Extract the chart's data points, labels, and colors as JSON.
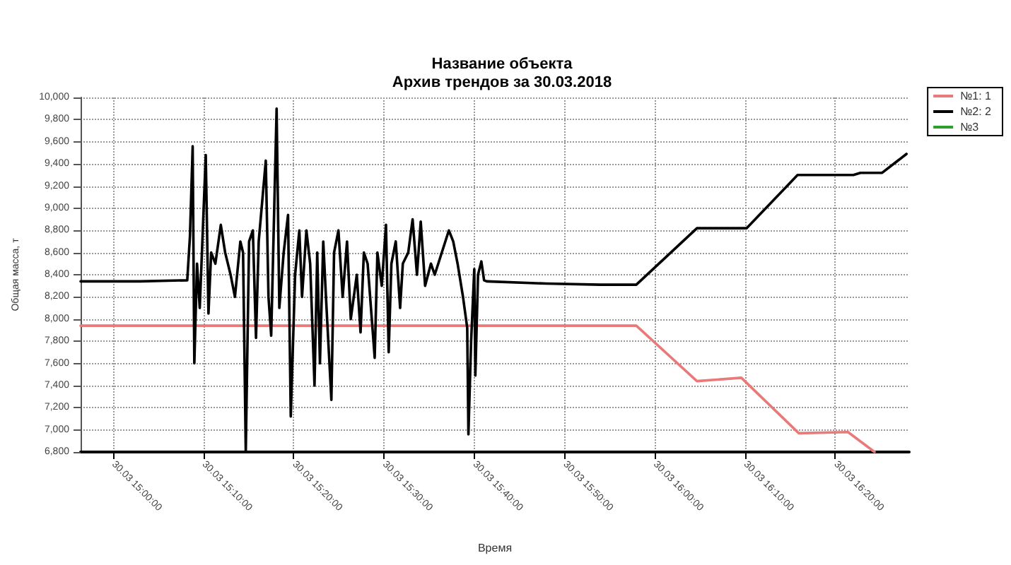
{
  "chart_data": {
    "type": "line",
    "title": "Название объекта\nАрхив трендов за 30.03.2018",
    "xlabel": "Время",
    "ylabel": "Общая масса, т",
    "xlim": [
      "2018-03-30T14:56:24",
      "2018-03-30T16:28:12"
    ],
    "ylim": [
      6800,
      10000
    ],
    "xticks": [
      {
        "value": "2018-03-30T15:00",
        "label": "30.03 15:00:00"
      },
      {
        "value": "2018-03-30T15:10",
        "label": "30.03 15:10:00"
      },
      {
        "value": "2018-03-30T15:20",
        "label": "30.03 15:20:00"
      },
      {
        "value": "2018-03-30T15:30",
        "label": "30.03 15:30:00"
      },
      {
        "value": "2018-03-30T15:40",
        "label": "30.03 15:40:00"
      },
      {
        "value": "2018-03-30T15:50",
        "label": "30.03 15:50:00"
      },
      {
        "value": "2018-03-30T16:00",
        "label": "30.03 16:00:00"
      },
      {
        "value": "2018-03-30T16:10",
        "label": "30.03 16:10:00"
      },
      {
        "value": "2018-03-30T16:20",
        "label": "30.03 16:20:00"
      }
    ],
    "yticks": [
      {
        "value": 6800,
        "label": "6,800"
      },
      {
        "value": 7000,
        "label": "7,000"
      },
      {
        "value": 7200,
        "label": "7,200"
      },
      {
        "value": 7400,
        "label": "7,400"
      },
      {
        "value": 7600,
        "label": "7,600"
      },
      {
        "value": 7800,
        "label": "7,800"
      },
      {
        "value": 8000,
        "label": "8,000"
      },
      {
        "value": 8200,
        "label": "8,200"
      },
      {
        "value": 8400,
        "label": "8,400"
      },
      {
        "value": 8600,
        "label": "8,600"
      },
      {
        "value": 8800,
        "label": "8,800"
      },
      {
        "value": 9000,
        "label": "9,000"
      },
      {
        "value": 9200,
        "label": "9,200"
      },
      {
        "value": 9400,
        "label": "9,400"
      },
      {
        "value": 9600,
        "label": "9,600"
      },
      {
        "value": 9800,
        "label": "9,800"
      },
      {
        "value": 10000,
        "label": "10,000"
      }
    ],
    "grid": true,
    "legend": "top right",
    "marker": "none",
    "line_style": "solid",
    "series": [
      {
        "name": "№1: 1",
        "color": "#e87a7a",
        "x": [
          "2018-03-30T14:56:24",
          "2018-03-30T15:30:00",
          "2018-03-30T15:57:58",
          "2018-03-30T16:04:41",
          "2018-03-30T16:09:36",
          "2018-03-30T16:15:58",
          "2018-03-30T16:21:25",
          "2018-03-30T16:24:22"
        ],
        "values": [
          7940,
          7940,
          7940,
          7440,
          7470,
          6970,
          6980,
          6800
        ]
      },
      {
        "name": "№2: 2",
        "color": "#000000",
        "x": [
          "2018-03-30T14:56:24",
          "2018-03-30T15:03:00",
          "2018-03-30T15:08:13",
          "2018-03-30T15:08:31",
          "2018-03-30T15:08:49",
          "2018-03-30T15:09:00",
          "2018-03-30T15:09:18",
          "2018-03-30T15:09:36",
          "2018-03-30T15:10:16",
          "2018-03-30T15:10:34",
          "2018-03-30T15:10:52",
          "2018-03-30T15:11:20",
          "2018-03-30T15:11:56",
          "2018-03-30T15:12:25",
          "2018-03-30T15:13:01",
          "2018-03-30T15:13:30",
          "2018-03-30T15:14:06",
          "2018-03-30T15:14:24",
          "2018-03-30T15:14:42",
          "2018-03-30T15:15:04",
          "2018-03-30T15:15:29",
          "2018-03-30T15:15:50",
          "2018-03-30T15:16:08",
          "2018-03-30T15:16:26",
          "2018-03-30T15:16:55",
          "2018-03-30T15:17:13",
          "2018-03-30T15:17:31",
          "2018-03-30T15:18:07",
          "2018-03-30T15:18:25",
          "2018-03-30T15:18:54",
          "2018-03-30T15:19:23",
          "2018-03-30T15:19:41",
          "2018-03-30T15:20:10",
          "2018-03-30T15:20:38",
          "2018-03-30T15:20:56",
          "2018-03-30T15:21:25",
          "2018-03-30T15:21:50",
          "2018-03-30T15:22:19",
          "2018-03-30T15:22:37",
          "2018-03-30T15:22:55",
          "2018-03-30T15:23:17",
          "2018-03-30T15:23:35",
          "2018-03-30T15:24:11",
          "2018-03-30T15:24:29",
          "2018-03-30T15:24:58",
          "2018-03-30T15:25:26",
          "2018-03-30T15:25:55",
          "2018-03-30T15:26:20",
          "2018-03-30T15:27:00",
          "2018-03-30T15:27:25",
          "2018-03-30T15:27:47",
          "2018-03-30T15:28:12",
          "2018-03-30T15:28:59",
          "2018-03-30T15:29:17",
          "2018-03-30T15:29:46",
          "2018-03-30T15:30:14",
          "2018-03-30T15:30:32",
          "2018-03-30T15:30:50",
          "2018-03-30T15:31:19",
          "2018-03-30T15:31:48",
          "2018-03-30T15:32:06",
          "2018-03-30T15:32:42",
          "2018-03-30T15:33:11",
          "2018-03-30T15:33:40",
          "2018-03-30T15:34:05",
          "2018-03-30T15:34:34",
          "2018-03-30T15:35:13",
          "2018-03-30T15:35:38",
          "2018-03-30T15:37:12",
          "2018-03-30T15:37:41",
          "2018-03-30T15:38:10",
          "2018-03-30T15:38:46",
          "2018-03-30T15:39:14",
          "2018-03-30T15:39:22",
          "2018-03-30T15:39:40",
          "2018-03-30T15:40:01",
          "2018-03-30T15:40:08",
          "2018-03-30T15:40:26",
          "2018-03-30T15:40:48",
          "2018-03-30T15:41:06",
          "2018-03-30T15:41:24",
          "2018-03-30T15:48:00",
          "2018-03-30T15:54:00",
          "2018-03-30T15:57:58",
          "2018-03-30T16:04:41",
          "2018-03-30T16:10:12",
          "2018-03-30T16:15:50",
          "2018-03-30T16:22:01",
          "2018-03-30T16:22:48",
          "2018-03-30T16:25:12",
          "2018-03-30T16:27:54"
        ],
        "values": [
          8340,
          8340,
          8350,
          8750,
          9560,
          7600,
          8500,
          8100,
          9480,
          8050,
          8600,
          8500,
          8850,
          8600,
          8400,
          8200,
          8700,
          8600,
          6800,
          8700,
          8800,
          7830,
          8700,
          8980,
          9430,
          8200,
          7850,
          9900,
          8100,
          8600,
          8940,
          7120,
          8400,
          8800,
          8200,
          8800,
          8500,
          7400,
          8600,
          7600,
          8700,
          8200,
          7270,
          8600,
          8800,
          8200,
          8700,
          8000,
          8400,
          7880,
          8600,
          8500,
          7650,
          8600,
          8300,
          8850,
          7700,
          8500,
          8700,
          8100,
          8500,
          8600,
          8900,
          8400,
          8880,
          8300,
          8500,
          8400,
          8800,
          8700,
          8500,
          8200,
          7920,
          6960,
          7800,
          8450,
          7490,
          8400,
          8520,
          8350,
          8340,
          8320,
          8310,
          8310,
          8820,
          8820,
          9300,
          9300,
          9320,
          9320,
          9490
        ]
      },
      {
        "name": "№3",
        "color": "#2ca02c"
      }
    ]
  }
}
